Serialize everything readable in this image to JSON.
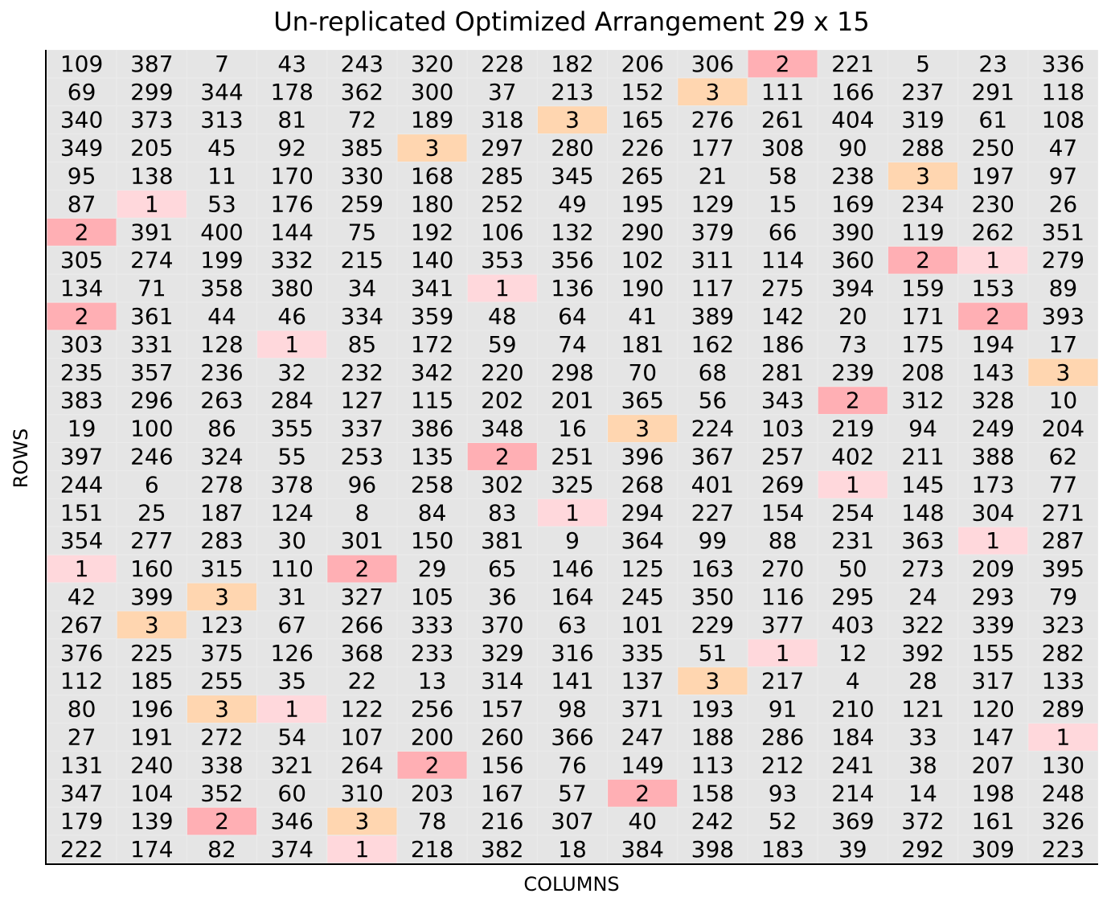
{
  "chart_data": {
    "type": "heatmap",
    "title": "Un-replicated Optimized Arrangement 29 x 15",
    "xlabel": "COLUMNS",
    "ylabel": "ROWS",
    "n_rows": 29,
    "n_cols": 15,
    "colors": {
      "default": "#e5e5e5",
      "1": "#ffd8dc",
      "2": "#ffafb4",
      "3": "#ffd6b0"
    },
    "values": [
      [
        109,
        387,
        7,
        43,
        243,
        320,
        228,
        182,
        206,
        306,
        2,
        221,
        5,
        23,
        336
      ],
      [
        69,
        299,
        344,
        178,
        362,
        300,
        37,
        213,
        152,
        3,
        111,
        166,
        237,
        291,
        118
      ],
      [
        340,
        373,
        313,
        81,
        72,
        189,
        318,
        3,
        165,
        276,
        261,
        404,
        319,
        61,
        108
      ],
      [
        349,
        205,
        45,
        92,
        385,
        3,
        297,
        280,
        226,
        177,
        308,
        90,
        288,
        250,
        47
      ],
      [
        95,
        138,
        11,
        170,
        330,
        168,
        285,
        345,
        265,
        21,
        58,
        238,
        3,
        197,
        97
      ],
      [
        87,
        1,
        53,
        176,
        259,
        180,
        252,
        49,
        195,
        129,
        15,
        169,
        234,
        230,
        26
      ],
      [
        2,
        391,
        400,
        144,
        75,
        192,
        106,
        132,
        290,
        379,
        66,
        390,
        119,
        262,
        351
      ],
      [
        305,
        274,
        199,
        332,
        215,
        140,
        353,
        356,
        102,
        311,
        114,
        360,
        2,
        1,
        279
      ],
      [
        134,
        71,
        358,
        380,
        34,
        341,
        1,
        136,
        190,
        117,
        275,
        394,
        159,
        153,
        89
      ],
      [
        2,
        361,
        44,
        46,
        334,
        359,
        48,
        64,
        41,
        389,
        142,
        20,
        171,
        2,
        393
      ],
      [
        303,
        331,
        128,
        1,
        85,
        172,
        59,
        74,
        181,
        162,
        186,
        73,
        175,
        194,
        17
      ],
      [
        235,
        357,
        236,
        32,
        232,
        342,
        220,
        298,
        70,
        68,
        281,
        239,
        208,
        143,
        3
      ],
      [
        383,
        296,
        263,
        284,
        127,
        115,
        202,
        201,
        365,
        56,
        343,
        2,
        312,
        328,
        10
      ],
      [
        19,
        100,
        86,
        355,
        337,
        386,
        348,
        16,
        3,
        224,
        103,
        219,
        94,
        249,
        204
      ],
      [
        397,
        246,
        324,
        55,
        253,
        135,
        2,
        251,
        396,
        367,
        257,
        402,
        211,
        388,
        62
      ],
      [
        244,
        6,
        278,
        378,
        96,
        258,
        302,
        325,
        268,
        401,
        269,
        1,
        145,
        173,
        77
      ],
      [
        151,
        25,
        187,
        124,
        8,
        84,
        83,
        1,
        294,
        227,
        154,
        254,
        148,
        304,
        271
      ],
      [
        354,
        277,
        283,
        30,
        301,
        150,
        381,
        9,
        364,
        99,
        88,
        231,
        363,
        1,
        287
      ],
      [
        1,
        160,
        315,
        110,
        2,
        29,
        65,
        146,
        125,
        163,
        270,
        50,
        273,
        209,
        395
      ],
      [
        42,
        399,
        3,
        31,
        327,
        105,
        36,
        164,
        245,
        350,
        116,
        295,
        24,
        293,
        79
      ],
      [
        267,
        3,
        123,
        67,
        266,
        333,
        370,
        63,
        101,
        229,
        377,
        403,
        322,
        339,
        323
      ],
      [
        376,
        225,
        375,
        126,
        368,
        233,
        329,
        316,
        335,
        51,
        1,
        12,
        392,
        155,
        282
      ],
      [
        112,
        185,
        255,
        35,
        22,
        13,
        314,
        141,
        137,
        3,
        217,
        4,
        28,
        317,
        133
      ],
      [
        80,
        196,
        3,
        1,
        122,
        256,
        157,
        98,
        371,
        193,
        91,
        210,
        121,
        120,
        289
      ],
      [
        27,
        191,
        272,
        54,
        107,
        200,
        260,
        366,
        247,
        188,
        286,
        184,
        33,
        147,
        1
      ],
      [
        131,
        240,
        338,
        321,
        264,
        2,
        156,
        76,
        149,
        113,
        212,
        241,
        38,
        207,
        130
      ],
      [
        347,
        104,
        352,
        60,
        310,
        203,
        167,
        57,
        2,
        158,
        93,
        214,
        14,
        198,
        248
      ],
      [
        179,
        139,
        2,
        346,
        3,
        78,
        216,
        307,
        40,
        242,
        52,
        369,
        372,
        161,
        326
      ],
      [
        222,
        174,
        82,
        374,
        1,
        218,
        382,
        18,
        384,
        398,
        183,
        39,
        292,
        309,
        223
      ]
    ]
  }
}
